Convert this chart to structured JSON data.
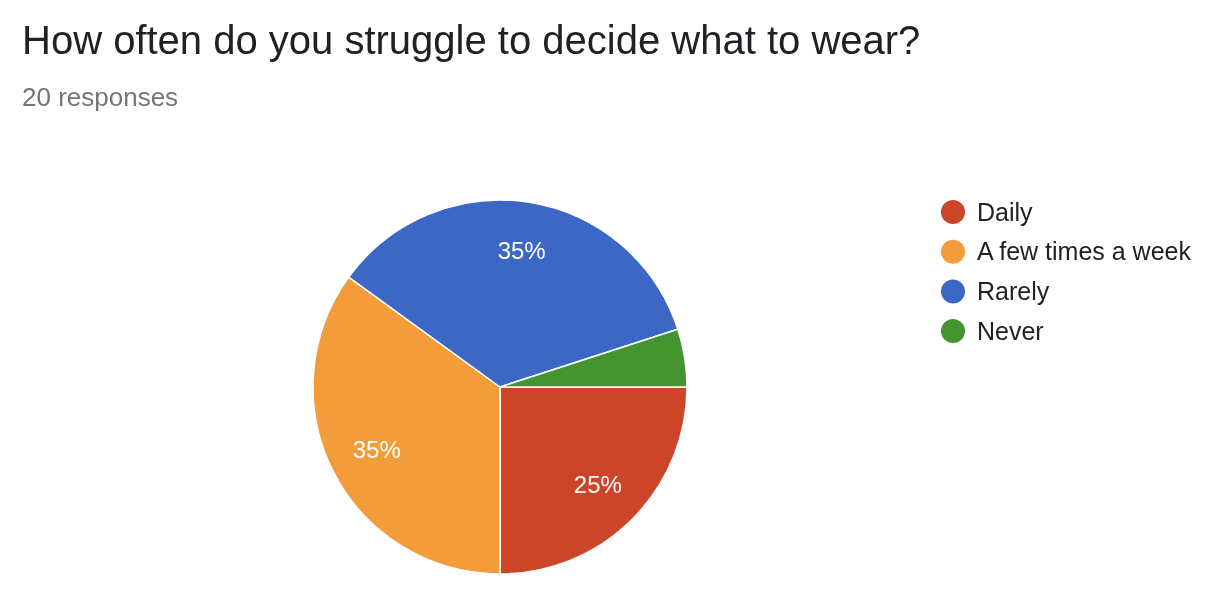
{
  "chart_data": {
    "type": "pie",
    "title": "How often do you struggle to decide what to wear?",
    "subtitle": "20 responses",
    "categories": [
      "Daily",
      "A few times a week",
      "Rarely",
      "Never"
    ],
    "values": [
      25,
      35,
      35,
      5
    ],
    "colors": [
      "#cc4528",
      "#f29d39",
      "#3d67c5",
      "#44952f"
    ],
    "value_labels": [
      "25%",
      "35%",
      "35%",
      null
    ],
    "legend": "right"
  }
}
